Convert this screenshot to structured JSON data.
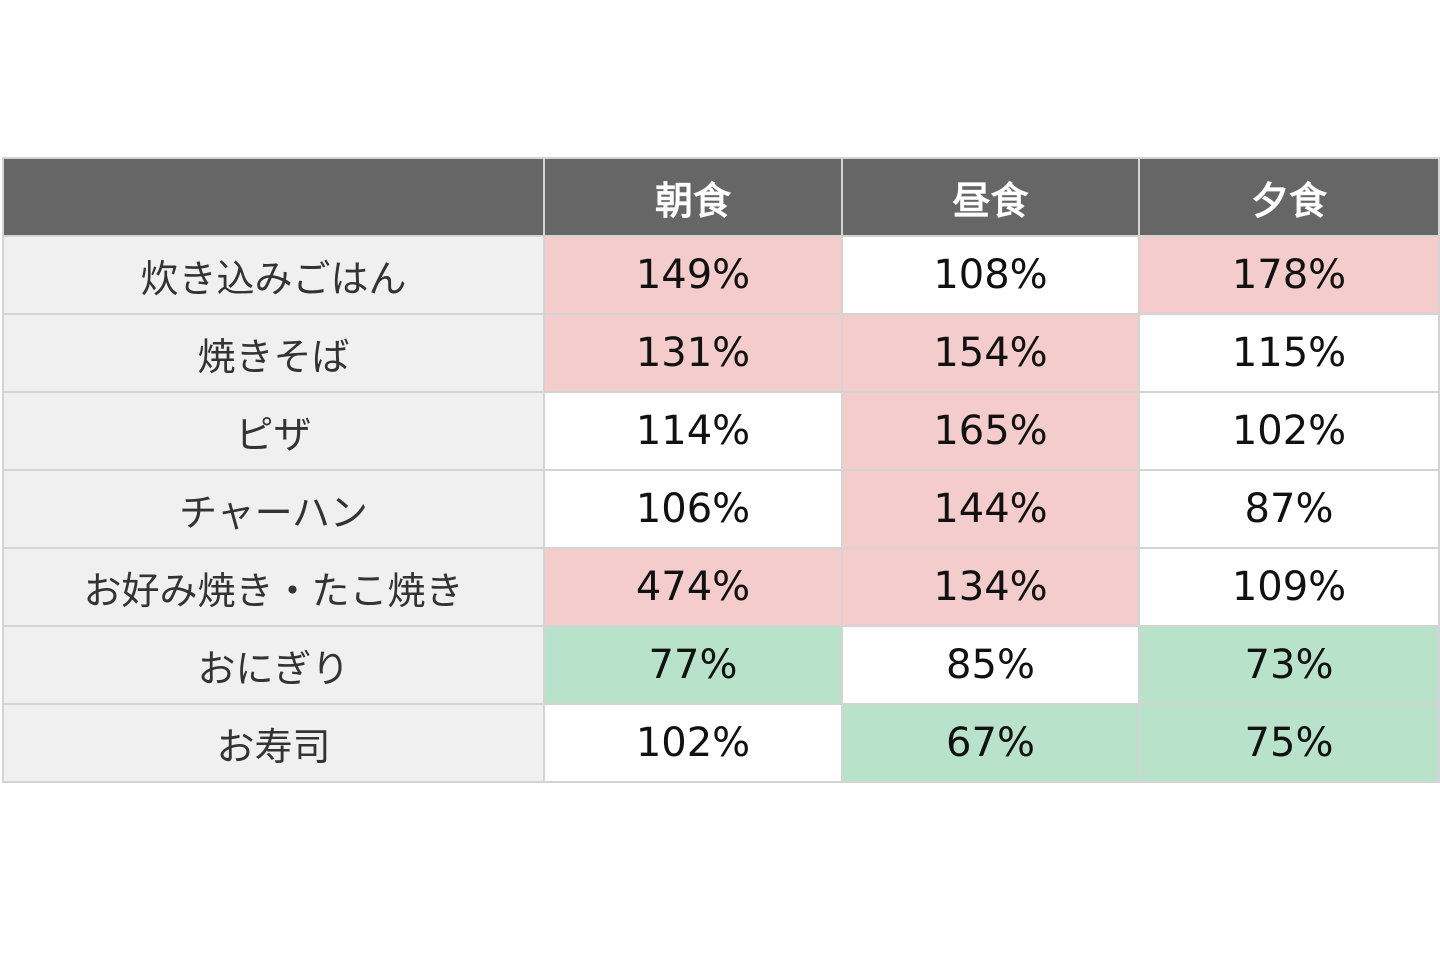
{
  "chart_data": {
    "type": "table",
    "columns": [
      "",
      "朝食",
      "昼食",
      "夕食"
    ],
    "rows": [
      {
        "label": "炊き込みごはん",
        "values": [
          "149%",
          "108%",
          "178%"
        ],
        "highlight": [
          "high",
          "none",
          "high"
        ]
      },
      {
        "label": "焼きそば",
        "values": [
          "131%",
          "154%",
          "115%"
        ],
        "highlight": [
          "high",
          "high",
          "none"
        ]
      },
      {
        "label": "ピザ",
        "values": [
          "114%",
          "165%",
          "102%"
        ],
        "highlight": [
          "none",
          "high",
          "none"
        ]
      },
      {
        "label": "チャーハン",
        "values": [
          "106%",
          "144%",
          "87%"
        ],
        "highlight": [
          "none",
          "high",
          "none"
        ]
      },
      {
        "label": "お好み焼き・たこ焼き",
        "values": [
          "474%",
          "134%",
          "109%"
        ],
        "highlight": [
          "high",
          "high",
          "none"
        ]
      },
      {
        "label": "おにぎり",
        "values": [
          "77%",
          "85%",
          "73%"
        ],
        "highlight": [
          "low",
          "none",
          "low"
        ]
      },
      {
        "label": "お寿司",
        "values": [
          "102%",
          "67%",
          "75%"
        ],
        "highlight": [
          "none",
          "low",
          "low"
        ]
      }
    ],
    "colors": {
      "header_bg": "#666666",
      "row_label_bg": "#f0f0f0",
      "high": "#f4cccc",
      "low": "#b9e2cb",
      "none": "#ffffff"
    }
  }
}
